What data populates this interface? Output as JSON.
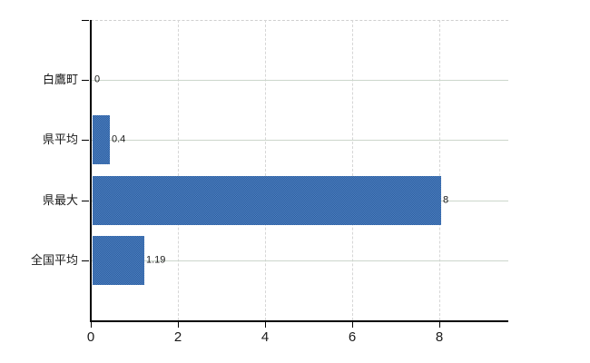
{
  "chart_data": {
    "type": "bar",
    "orientation": "horizontal",
    "categories": [
      "白鷹町",
      "県平均",
      "県最大",
      "全国平均"
    ],
    "values": [
      0,
      0.4,
      8,
      1.19
    ],
    "value_labels": [
      "0",
      "0.4",
      "8",
      "1.19"
    ],
    "x_axis": {
      "tick_labels": [
        "0",
        "2",
        "4",
        "6",
        "8"
      ],
      "tick_values": [
        0,
        2,
        4,
        6,
        8
      ],
      "range": [
        0,
        9.58
      ],
      "grid": "dashed-vertical"
    },
    "y_axis": {
      "grid": "solid-horizontal"
    },
    "legend": "none",
    "title": "",
    "colors": {
      "bar_dither_dark": "#2d5f9e",
      "bar_dither_light": "#4d7fc2",
      "axis": "#000000",
      "horizontal_grid": "#ccd6cb",
      "vertical_grid": "#d6d6d6",
      "plot_top_border": "#cfcfcf",
      "text": "#1a1a1a",
      "background": "#ffffff"
    }
  }
}
